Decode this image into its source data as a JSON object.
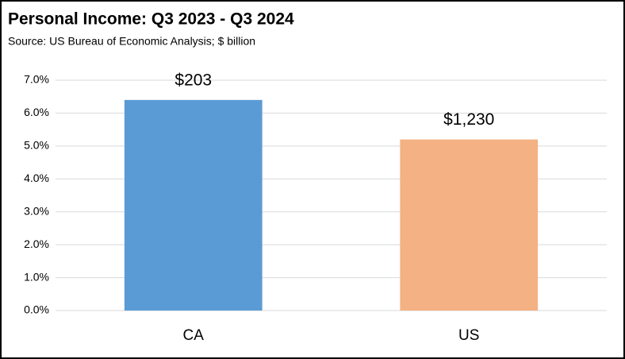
{
  "chart_data": {
    "type": "bar",
    "title": "Personal Income:  Q3 2023 - Q3 2024",
    "subtitle": "Source:  US Bureau of Economic Analysis; $ billion",
    "categories": [
      "CA",
      "US"
    ],
    "values": [
      6.4,
      5.2
    ],
    "annotations": [
      "$203",
      "$1,230"
    ],
    "colors": [
      "#5b9bd5",
      "#f4b183"
    ],
    "ylim": [
      0,
      7
    ],
    "yticks": [
      {
        "value": 0,
        "label": "0.0%"
      },
      {
        "value": 1,
        "label": "1.0%"
      },
      {
        "value": 2,
        "label": "2.0%"
      },
      {
        "value": 3,
        "label": "3.0%"
      },
      {
        "value": 4,
        "label": "4.0%"
      },
      {
        "value": 5,
        "label": "5.0%"
      },
      {
        "value": 6,
        "label": "6.0%"
      },
      {
        "value": 7,
        "label": "7.0%"
      }
    ],
    "grid": true
  }
}
